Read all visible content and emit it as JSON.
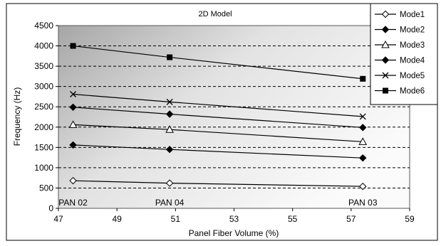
{
  "chart_data": {
    "type": "line",
    "title": "2D Model",
    "xlabel": "Panel Fiber Volume (%)",
    "ylabel": "Frequency (Hz)",
    "xlim": [
      47,
      59
    ],
    "ylim": [
      0,
      4500
    ],
    "x_ticks": [
      47,
      49,
      51,
      53,
      55,
      57,
      59
    ],
    "y_ticks": [
      0,
      500,
      1000,
      1500,
      2000,
      2500,
      3000,
      3500,
      4000,
      4500
    ],
    "x": [
      47.5,
      50.8,
      57.4
    ],
    "point_labels": [
      "PAN 02",
      "PAN 04",
      "PAN 03"
    ],
    "legend_position": "right",
    "grid": "horizontal-dashed",
    "series": [
      {
        "name": "Mode1",
        "marker": "diamond-open",
        "values": [
          680,
          620,
          540
        ]
      },
      {
        "name": "Mode2",
        "marker": "diamond-filled",
        "values": [
          1560,
          1450,
          1240
        ]
      },
      {
        "name": "Mode3",
        "marker": "triangle-open",
        "values": [
          2060,
          1940,
          1640
        ]
      },
      {
        "name": "Mode4",
        "marker": "diamond-filled",
        "values": [
          2490,
          2320,
          1990
        ]
      },
      {
        "name": "Mode5",
        "marker": "x",
        "values": [
          2810,
          2620,
          2260
        ]
      },
      {
        "name": "Mode6",
        "marker": "square-filled",
        "values": [
          4000,
          3720,
          3190
        ]
      }
    ]
  }
}
